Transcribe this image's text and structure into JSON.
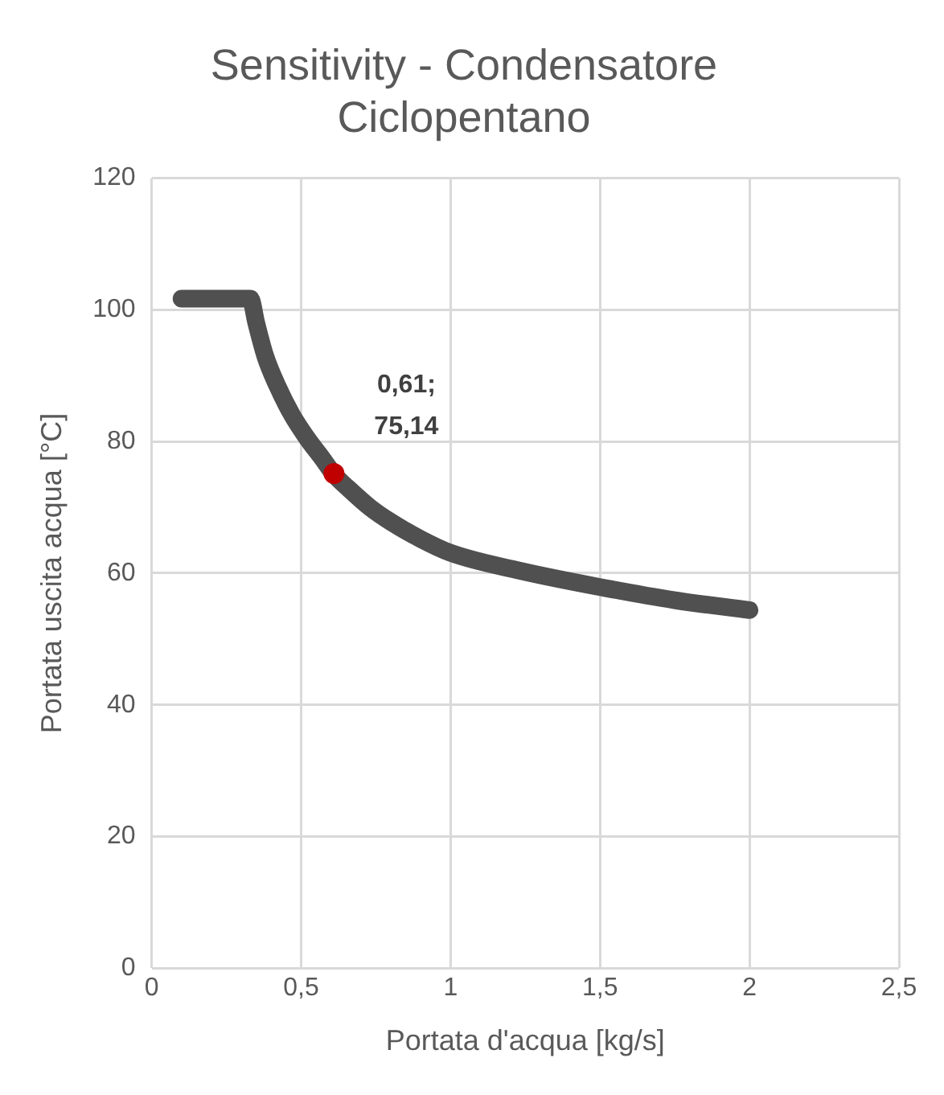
{
  "chart_data": {
    "type": "line",
    "title": "Sensitivity - Condensatore Ciclopentano",
    "xlabel": "Portata d'acqua [kg/s]",
    "ylabel": "Portata uscita acqua [°C]",
    "series": [
      {
        "color": "#505050",
        "x": [
          0.1,
          0.33,
          0.35,
          0.38,
          0.42,
          0.47,
          0.52,
          0.57,
          0.61,
          0.66,
          0.73,
          0.8,
          0.9,
          1,
          1.23,
          1.5,
          1.75,
          2
        ],
        "values": [
          101.7,
          101.7,
          98,
          93,
          88.5,
          84,
          80.5,
          77.5,
          75,
          72.8,
          70,
          67.8,
          65.2,
          63.1,
          60.4,
          57.9,
          55.9,
          54.4
        ]
      },
      {
        "type": "scatter",
        "color": "#c00000",
        "x": [
          0.61
        ],
        "values": [
          75.14
        ],
        "value_labels": [
          "0,61; 75,14"
        ]
      }
    ],
    "xlim": [
      0,
      2.5
    ],
    "xticks": [
      0,
      {
        "value": 0.5,
        "label": "0,5"
      },
      1,
      {
        "value": 1.5,
        "label": "1,5"
      },
      2,
      {
        "value": 2.5,
        "label": "2,5"
      }
    ],
    "ylim": [
      0,
      120
    ],
    "yticks": [
      0,
      20,
      40,
      60,
      80,
      100,
      120
    ],
    "grid": true,
    "legend": false
  }
}
